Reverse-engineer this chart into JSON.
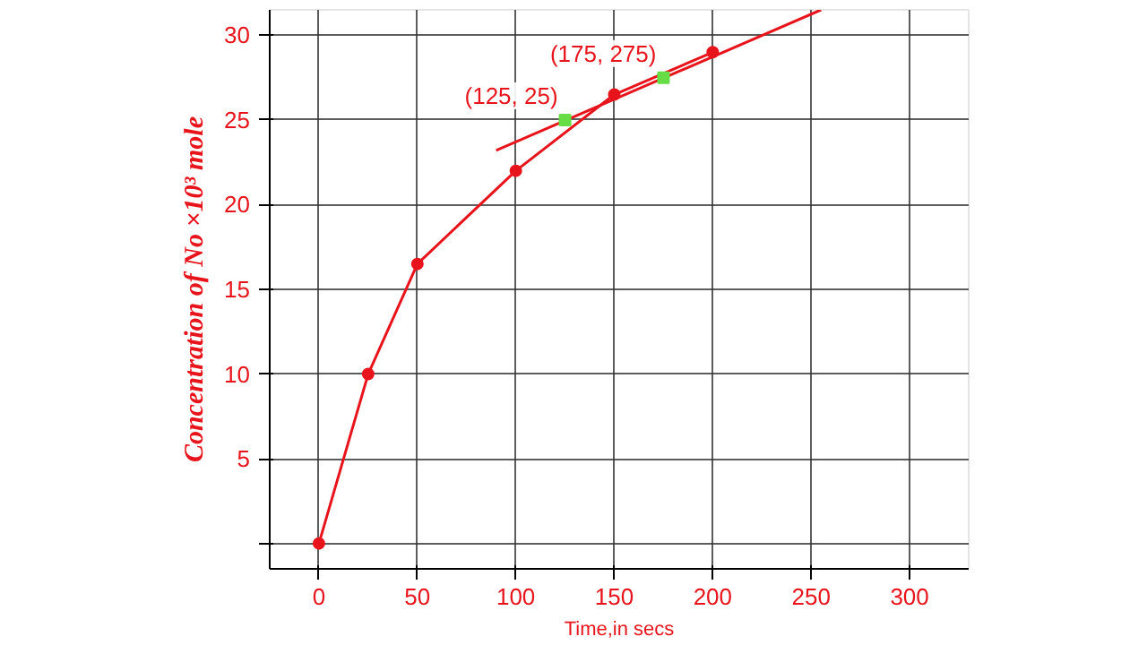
{
  "chart_data": {
    "type": "line",
    "xlabel": "Time,in secs",
    "ylabel": "Concentration of No ×10³ mole",
    "xlim": [
      -25,
      330
    ],
    "ylim": [
      -1.5,
      31.5
    ],
    "xticks": [
      0,
      50,
      100,
      150,
      200,
      250,
      300
    ],
    "yticks": [
      {
        "value": 0,
        "label": null
      },
      5,
      10,
      15,
      20,
      25,
      30
    ],
    "grid": true,
    "marker": "circle",
    "series": [
      {
        "color": "#e8141c",
        "x": [
          0,
          25,
          50,
          100,
          150,
          200
        ],
        "values": [
          0,
          10,
          16.5,
          22,
          26.5,
          29
        ]
      },
      {
        "color": "#e8141c",
        "marker": "none",
        "x": [
          90,
          255
        ],
        "values": [
          23.2,
          31.5
        ]
      },
      {
        "type": "scatter",
        "color": "#66dd44",
        "marker": "square",
        "x": [
          125,
          175
        ],
        "values": [
          25,
          27.5
        ]
      }
    ],
    "annotations": [
      {
        "text": "(125, 25)",
        "x": 125,
        "y": 25
      },
      {
        "text": "(175, 275)",
        "x": 175,
        "y": 27.5
      }
    ]
  }
}
